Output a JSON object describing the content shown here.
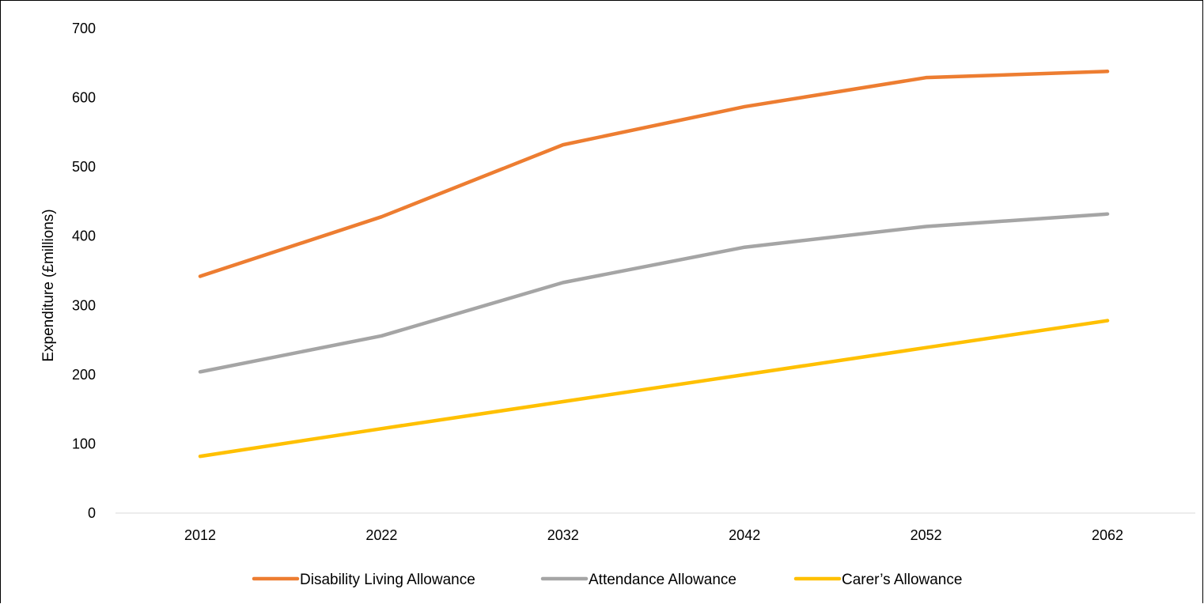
{
  "chart_data": {
    "type": "line",
    "title": "",
    "xlabel": "",
    "ylabel": "Expenditure (£millions)",
    "categories": [
      "2012",
      "2022",
      "2032",
      "2042",
      "2052",
      "2062"
    ],
    "ylim": [
      0,
      700
    ],
    "yticks": [
      "0",
      "100",
      "200",
      "300",
      "400",
      "500",
      "600",
      "700"
    ],
    "grid": false,
    "legend_position": "bottom",
    "series": [
      {
        "name": "Disability Living Allowance",
        "color": "#ED7D31",
        "values": [
          342,
          428,
          532,
          587,
          629,
          638
        ]
      },
      {
        "name": "Attendance Allowance",
        "color": "#A5A5A5",
        "values": [
          204,
          256,
          333,
          384,
          414,
          432
        ]
      },
      {
        "name": "Carer’s Allowance",
        "color": "#FFC000",
        "values": [
          82,
          122,
          161,
          200,
          239,
          278
        ]
      }
    ]
  }
}
